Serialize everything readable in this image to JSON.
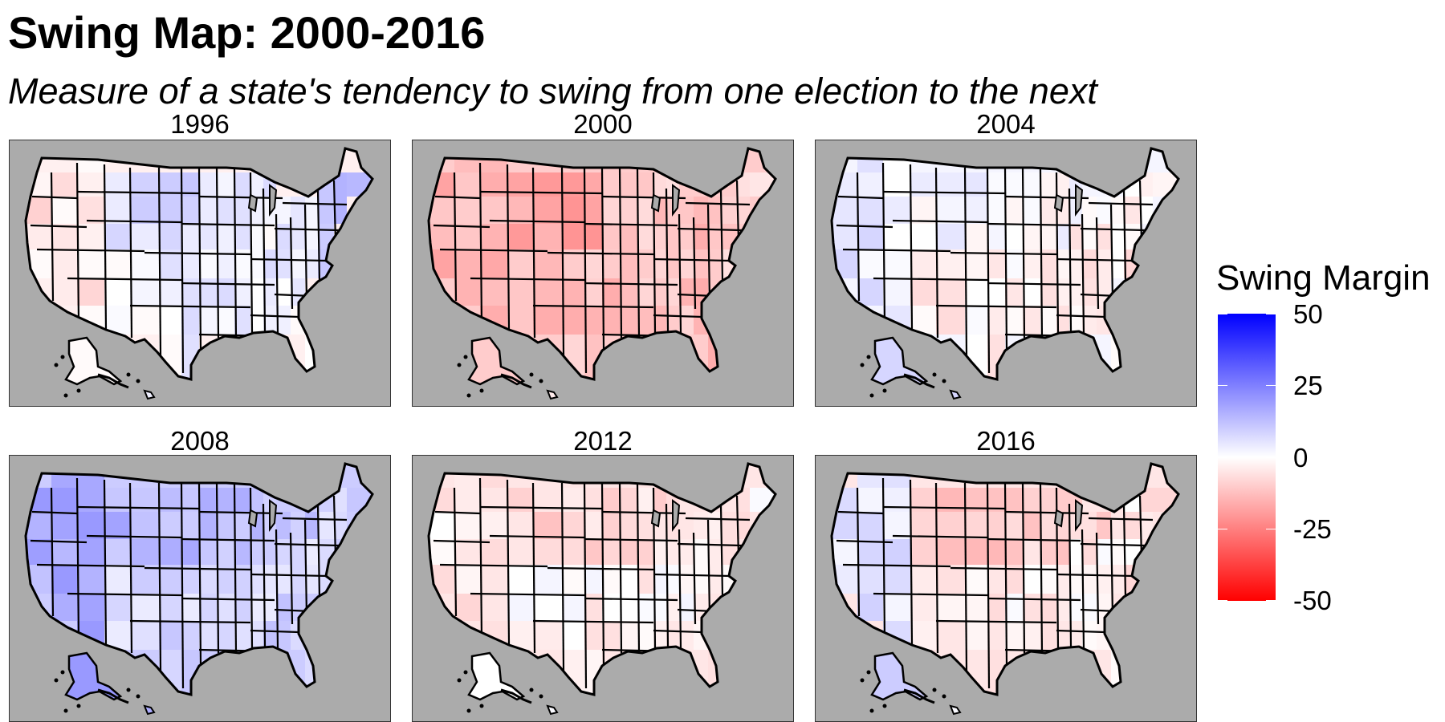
{
  "title": "Swing Map: 2000-2016",
  "subtitle": "Measure of a state's tendency to swing from one election to the next",
  "colors": {
    "negative": "#ff0000",
    "neutral": "#ffffff",
    "positive": "#0000ff",
    "panel_background": "#ababab",
    "border": "#000000"
  },
  "legend": {
    "title": "Swing Margin",
    "labels": [
      "50",
      "25",
      "0",
      "-25",
      "-50"
    ],
    "breaks": [
      50,
      25,
      0,
      -25,
      -50
    ],
    "range": [
      -50,
      50
    ]
  },
  "panels": [
    {
      "year": "1996",
      "base": -3,
      "regions": {
        "NE": 12,
        "WEST": -5,
        "NP": 8,
        "S": 3,
        "MW": 5
      }
    },
    {
      "year": "2000",
      "base": -10,
      "regions": {
        "NE": -8,
        "WEST": -14,
        "NP": -18,
        "S": -12,
        "MW": -10
      }
    },
    {
      "year": "2004",
      "base": 2,
      "regions": {
        "NE": -4,
        "WEST": 4,
        "NP": 2,
        "S": -3,
        "MW": 0
      }
    },
    {
      "year": "2008",
      "base": 10,
      "regions": {
        "NE": 8,
        "WEST": 16,
        "NP": 14,
        "S": 8,
        "MW": 12
      }
    },
    {
      "year": "2012",
      "base": -5,
      "regions": {
        "NE": -3,
        "WEST": -4,
        "NP": -8,
        "S": -2,
        "MW": -6
      }
    },
    {
      "year": "2016",
      "base": -5,
      "regions": {
        "NE": -4,
        "WEST": 6,
        "NP": -12,
        "S": -3,
        "MW": -9
      }
    }
  ]
}
